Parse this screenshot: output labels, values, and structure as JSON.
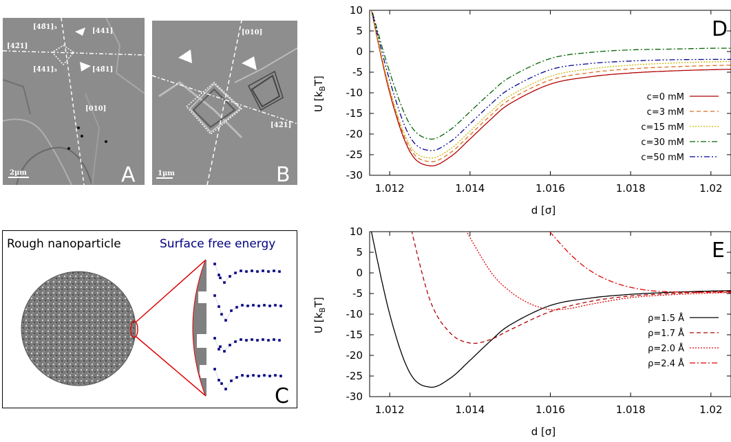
{
  "panelA": {
    "letter": "A",
    "scale": "2μm",
    "labels": [
      "[48̄1]₃",
      "[441]",
      "[42̄1]",
      "[4̄41]₃",
      "[48̄1]",
      "[010]"
    ]
  },
  "panelB": {
    "letter": "B",
    "scale": "1μm",
    "labels": [
      "[010]",
      "[42̄1]"
    ]
  },
  "panelC": {
    "letter": "C",
    "title_left": "Rough nanoparticle",
    "title_right": "Surface free energy",
    "colors": {
      "outline": "#dd0000",
      "title_right": "#000080",
      "points": "#000080"
    }
  },
  "chart_data": [
    {
      "panel": "D",
      "type": "line",
      "xlabel": "d [σ]",
      "ylabel": "U [kʙT]",
      "ylabel_main": "U [k",
      "ylabel_sub": "B",
      "ylabel_end": "T]",
      "xlim": [
        1.0115,
        1.0205
      ],
      "ylim": [
        -30,
        10
      ],
      "xticks": [
        1.012,
        1.014,
        1.016,
        1.018,
        1.02
      ],
      "xtick_labels": [
        "1.012",
        "1.014",
        "1.016",
        "1.018",
        "1.02"
      ],
      "yticks": [
        10,
        5,
        0,
        -5,
        -10,
        -15,
        -20,
        -25,
        -30
      ],
      "ytick_labels": [
        "10",
        "5",
        "0",
        "-5",
        "-10",
        "-15",
        "-20",
        "-25",
        "-30"
      ],
      "legend_position": "bottom-right",
      "series": [
        {
          "name": "c=0 mM",
          "color": "#b00000",
          "dash": "solid",
          "x": [
            1.0115,
            1.012,
            1.0125,
            1.013,
            1.0135,
            1.014,
            1.0145,
            1.015,
            1.016,
            1.017,
            1.018,
            1.019,
            1.02,
            1.0205
          ],
          "values": [
            12,
            -10,
            -24.2,
            -27.7,
            -25.6,
            -21.2,
            -16.6,
            -12.6,
            -7.9,
            -6.1,
            -5.2,
            -4.7,
            -4.4,
            -4.3
          ]
        },
        {
          "name": "c=3 mM",
          "color": "#e06c1c",
          "dash": "dashed",
          "x": [
            1.0115,
            1.012,
            1.0125,
            1.013,
            1.0135,
            1.014,
            1.0145,
            1.015,
            1.016,
            1.017,
            1.018,
            1.019,
            1.02,
            1.0205
          ],
          "values": [
            12,
            -9.5,
            -23.4,
            -26.7,
            -24.6,
            -20.2,
            -15.6,
            -11.6,
            -6.9,
            -5.1,
            -4.2,
            -3.7,
            -3.4,
            -3.3
          ]
        },
        {
          "name": "c=15 mM",
          "color": "#c8b400",
          "dash": "dotted",
          "x": [
            1.0115,
            1.012,
            1.0125,
            1.013,
            1.0135,
            1.014,
            1.0145,
            1.015,
            1.016,
            1.017,
            1.018,
            1.019,
            1.02,
            1.0205
          ],
          "values": [
            12,
            -9,
            -22.7,
            -25.8,
            -23.7,
            -19.3,
            -14.7,
            -10.7,
            -6.0,
            -4.2,
            -3.3,
            -2.8,
            -2.5,
            -2.4
          ]
        },
        {
          "name": "c=30 mM",
          "color": "#006400",
          "dash": "dashdot",
          "x": [
            1.0115,
            1.012,
            1.0125,
            1.013,
            1.0135,
            1.014,
            1.0145,
            1.015,
            1.016,
            1.017,
            1.018,
            1.019,
            1.02,
            1.0205
          ],
          "values": [
            12,
            -5,
            -17.6,
            -21.2,
            -19.0,
            -14.6,
            -10.1,
            -6.2,
            -1.7,
            -0.2,
            0.4,
            0.6,
            0.8,
            0.8
          ]
        },
        {
          "name": "c=50 mM",
          "color": "#000090",
          "dash": "dashdotdot",
          "x": [
            1.0115,
            1.012,
            1.0125,
            1.013,
            1.0135,
            1.014,
            1.0145,
            1.015,
            1.016,
            1.017,
            1.018,
            1.019,
            1.02,
            1.0205
          ],
          "values": [
            12,
            -7,
            -20.6,
            -24.0,
            -21.9,
            -17.5,
            -12.9,
            -9.0,
            -4.4,
            -2.9,
            -2.3,
            -2.0,
            -1.9,
            -1.9
          ]
        }
      ]
    },
    {
      "panel": "E",
      "type": "line",
      "xlabel": "d [σ]",
      "ylabel": "U [kʙT]",
      "ylabel_main": "U [k",
      "ylabel_sub": "B",
      "ylabel_end": "T]",
      "xlim": [
        1.0115,
        1.0205
      ],
      "ylim": [
        -30,
        10
      ],
      "xticks": [
        1.012,
        1.014,
        1.016,
        1.018,
        1.02
      ],
      "xtick_labels": [
        "1.012",
        "1.014",
        "1.016",
        "1.018",
        "1.02"
      ],
      "yticks": [
        10,
        5,
        0,
        -5,
        -10,
        -15,
        -20,
        -25,
        -30
      ],
      "ytick_labels": [
        "10",
        "5",
        "0",
        "-5",
        "-10",
        "-15",
        "-20",
        "-25",
        "-30"
      ],
      "legend_position": "bottom-right",
      "series": [
        {
          "name": "ρ=1.5 Å",
          "color": "#000000",
          "dash": "solid",
          "x": [
            1.0115,
            1.012,
            1.0125,
            1.013,
            1.0135,
            1.014,
            1.0145,
            1.015,
            1.016,
            1.017,
            1.018,
            1.019,
            1.02,
            1.0205
          ],
          "values": [
            12,
            -10,
            -24.2,
            -27.7,
            -25.6,
            -21.2,
            -16.6,
            -12.6,
            -7.9,
            -6.1,
            -5.2,
            -4.7,
            -4.4,
            -4.3
          ]
        },
        {
          "name": "ρ=1.7 Å",
          "color": "#b00000",
          "dash": "dashed",
          "x": [
            1.0125,
            1.013,
            1.0135,
            1.014,
            1.0145,
            1.015,
            1.016,
            1.017,
            1.018,
            1.019,
            1.02,
            1.0205
          ],
          "values": [
            12,
            -6.5,
            -14.5,
            -17.0,
            -16.2,
            -13.8,
            -9.4,
            -6.9,
            -5.6,
            -5.0,
            -4.6,
            -4.5
          ]
        },
        {
          "name": "ρ=2.0 Å",
          "color": "#e00000",
          "dash": "dotted",
          "x": [
            1.0138,
            1.0145,
            1.015,
            1.0155,
            1.016,
            1.0165,
            1.017,
            1.018,
            1.019,
            1.02,
            1.0205
          ],
          "values": [
            12,
            0.5,
            -4.5,
            -7.5,
            -8.9,
            -8.6,
            -7.6,
            -6.0,
            -5.3,
            -4.9,
            -4.8
          ]
        },
        {
          "name": "ρ=2.4 Å",
          "color": "#e00000",
          "dash": "dashdot",
          "x": [
            1.0158,
            1.0165,
            1.017,
            1.0175,
            1.018,
            1.0185,
            1.019,
            1.0195,
            1.02,
            1.0205
          ],
          "values": [
            12,
            4.5,
            0.5,
            -2.0,
            -3.5,
            -4.3,
            -4.6,
            -4.7,
            -4.7,
            -4.7
          ]
        }
      ]
    }
  ]
}
